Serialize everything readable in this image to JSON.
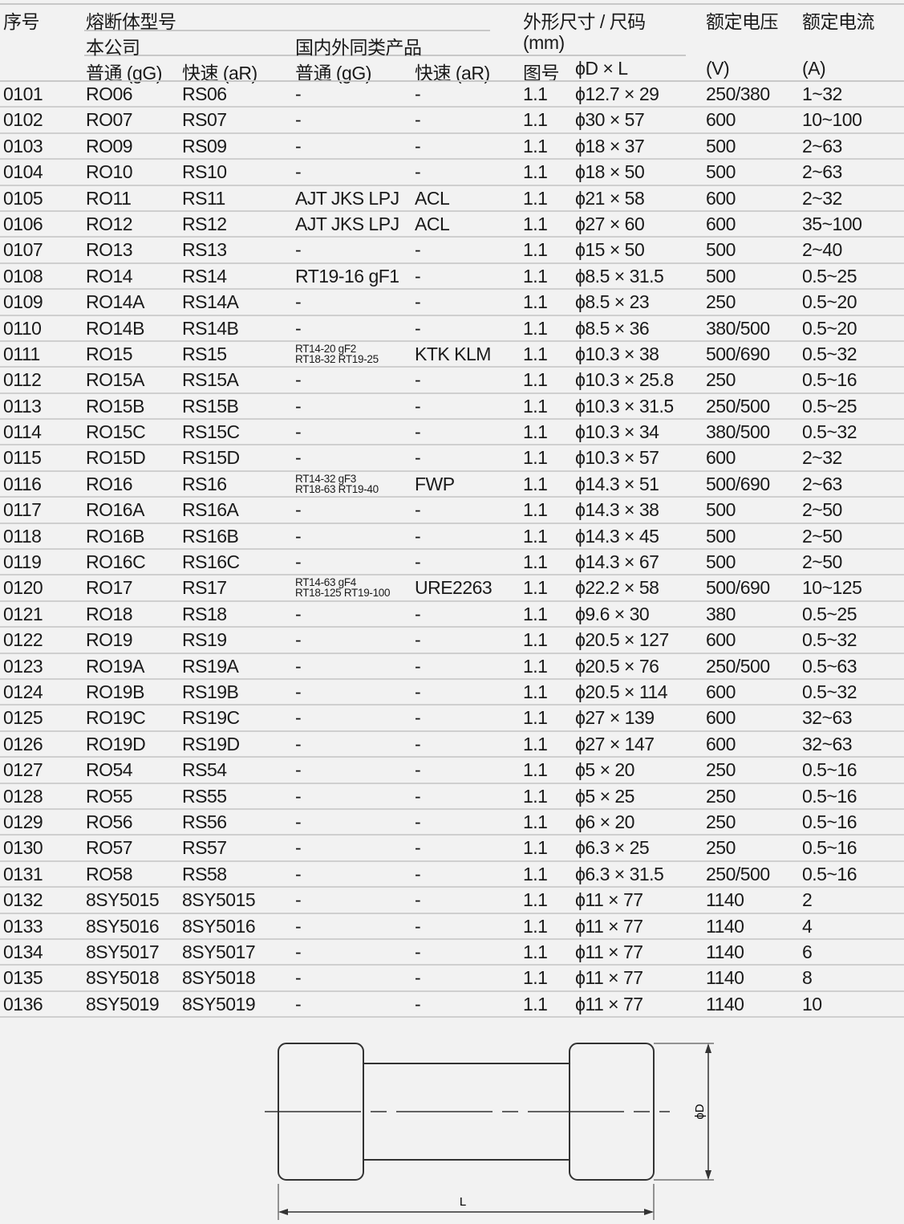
{
  "header": {
    "seq": "序号",
    "fuse_model": "熔断体型号",
    "company": "本公司",
    "domestic": "国内外同类产品",
    "dims": "外形尺寸 / 尺码",
    "dims_unit": "(mm)",
    "voltage": "额定电压",
    "current": "额定电流",
    "gG": "普通 (gG)",
    "aR": "快速 (aR)",
    "gG2": "普通 (gG)",
    "aR2": "快速 (aR)",
    "fig": "图号",
    "dxl": "ϕD × L",
    "v_unit": "(V)",
    "a_unit": "(A)"
  },
  "rows": [
    [
      "0101",
      "RO06",
      "RS06",
      "-",
      "-",
      "1.1",
      "ϕ12.7 × 29",
      "250/380",
      "1~32"
    ],
    [
      "0102",
      "RO07",
      "RS07",
      "-",
      "-",
      "1.1",
      "ϕ30 × 57",
      "600",
      "10~100"
    ],
    [
      "0103",
      "RO09",
      "RS09",
      "-",
      "-",
      "1.1",
      "ϕ18 × 37",
      "500",
      "2~63"
    ],
    [
      "0104",
      "RO10",
      "RS10",
      "-",
      "-",
      "1.1",
      "ϕ18 × 50",
      "500",
      "2~63"
    ],
    [
      "0105",
      "RO11",
      "RS11",
      "AJT JKS LPJ",
      "ACL",
      "1.1",
      "ϕ21 × 58",
      "600",
      "2~32"
    ],
    [
      "0106",
      "RO12",
      "RS12",
      "AJT JKS LPJ",
      "ACL",
      "1.1",
      "ϕ27 × 60",
      "600",
      "35~100"
    ],
    [
      "0107",
      "RO13",
      "RS13",
      "-",
      "-",
      "1.1",
      "ϕ15 × 50",
      "500",
      "2~40"
    ],
    [
      "0108",
      "RO14",
      "RS14",
      "RT19-16 gF1",
      "-",
      "1.1",
      "ϕ8.5 × 31.5",
      "500",
      "0.5~25"
    ],
    [
      "0109",
      "RO14A",
      "RS14A",
      "-",
      "-",
      "1.1",
      "ϕ8.5 × 23",
      "250",
      "0.5~20"
    ],
    [
      "0110",
      "RO14B",
      "RS14B",
      "-",
      "-",
      "1.1",
      "ϕ8.5 × 36",
      "380/500",
      "0.5~20"
    ],
    [
      "0111",
      "RO15",
      "RS15",
      "RT14-20 gF2\nRT18-32 RT19-25",
      "KTK KLM",
      "1.1",
      "ϕ10.3 × 38",
      "500/690",
      "0.5~32"
    ],
    [
      "0112",
      "RO15A",
      "RS15A",
      "-",
      "-",
      "1.1",
      "ϕ10.3 × 25.8",
      "250",
      "0.5~16"
    ],
    [
      "0113",
      "RO15B",
      "RS15B",
      "-",
      "-",
      "1.1",
      "ϕ10.3 × 31.5",
      "250/500",
      "0.5~25"
    ],
    [
      "0114",
      "RO15C",
      "RS15C",
      "-",
      "-",
      "1.1",
      "ϕ10.3 × 34",
      "380/500",
      "0.5~32"
    ],
    [
      "0115",
      "RO15D",
      "RS15D",
      "-",
      "-",
      "1.1",
      "ϕ10.3 × 57",
      "600",
      "2~32"
    ],
    [
      "0116",
      "RO16",
      "RS16",
      "RT14-32 gF3\nRT18-63 RT19-40",
      "FWP",
      "1.1",
      "ϕ14.3 × 51",
      "500/690",
      "2~63"
    ],
    [
      "0117",
      "RO16A",
      "RS16A",
      "-",
      "-",
      "1.1",
      "ϕ14.3 × 38",
      "500",
      "2~50"
    ],
    [
      "0118",
      "RO16B",
      "RS16B",
      "-",
      "-",
      "1.1",
      "ϕ14.3 × 45",
      "500",
      "2~50"
    ],
    [
      "0119",
      "RO16C",
      "RS16C",
      "-",
      "-",
      "1.1",
      "ϕ14.3 × 67",
      "500",
      "2~50"
    ],
    [
      "0120",
      "RO17",
      "RS17",
      "RT14-63 gF4\nRT18-125 RT19-100",
      "URE2263",
      "1.1",
      "ϕ22.2 × 58",
      "500/690",
      "10~125"
    ],
    [
      "0121",
      "RO18",
      "RS18",
      "-",
      "-",
      "1.1",
      "ϕ9.6 × 30",
      "380",
      "0.5~25"
    ],
    [
      "0122",
      "RO19",
      "RS19",
      "-",
      "-",
      "1.1",
      "ϕ20.5 × 127",
      "600",
      "0.5~32"
    ],
    [
      "0123",
      "RO19A",
      "RS19A",
      "-",
      "-",
      "1.1",
      "ϕ20.5 × 76",
      "250/500",
      "0.5~63"
    ],
    [
      "0124",
      "RO19B",
      "RS19B",
      "-",
      "-",
      "1.1",
      "ϕ20.5 × 114",
      "600",
      "0.5~32"
    ],
    [
      "0125",
      "RO19C",
      "RS19C",
      "-",
      "-",
      "1.1",
      "ϕ27 × 139",
      "600",
      "32~63"
    ],
    [
      "0126",
      "RO19D",
      "RS19D",
      "-",
      "-",
      "1.1",
      "ϕ27 × 147",
      "600",
      "32~63"
    ],
    [
      "0127",
      "RO54",
      "RS54",
      "-",
      "-",
      "1.1",
      "ϕ5 × 20",
      "250",
      "0.5~16"
    ],
    [
      "0128",
      "RO55",
      "RS55",
      "-",
      "-",
      "1.1",
      "ϕ5 × 25",
      "250",
      "0.5~16"
    ],
    [
      "0129",
      "RO56",
      "RS56",
      "-",
      "-",
      "1.1",
      "ϕ6 × 20",
      "250",
      "0.5~16"
    ],
    [
      "0130",
      "RO57",
      "RS57",
      "-",
      "-",
      "1.1",
      "ϕ6.3 × 25",
      "250",
      "0.5~16"
    ],
    [
      "0131",
      "RO58",
      "RS58",
      "-",
      "-",
      "1.1",
      "ϕ6.3 × 31.5",
      "250/500",
      "0.5~16"
    ],
    [
      "0132",
      "8SY5015",
      "8SY5015",
      "-",
      "-",
      "1.1",
      "ϕ11 × 77",
      "1140",
      "2"
    ],
    [
      "0133",
      "8SY5016",
      "8SY5016",
      "-",
      "-",
      "1.1",
      "ϕ11 × 77",
      "1140",
      "4"
    ],
    [
      "0134",
      "8SY5017",
      "8SY5017",
      "-",
      "-",
      "1.1",
      "ϕ11 × 77",
      "1140",
      "6"
    ],
    [
      "0135",
      "8SY5018",
      "8SY5018",
      "-",
      "-",
      "1.1",
      "ϕ11 × 77",
      "1140",
      "8"
    ],
    [
      "0136",
      "8SY5019",
      "8SY5019",
      "-",
      "-",
      "1.1",
      "ϕ11 × 77",
      "1140",
      "10"
    ]
  ],
  "diagram": {
    "diameter_label": "ϕD",
    "length_label": "L"
  }
}
